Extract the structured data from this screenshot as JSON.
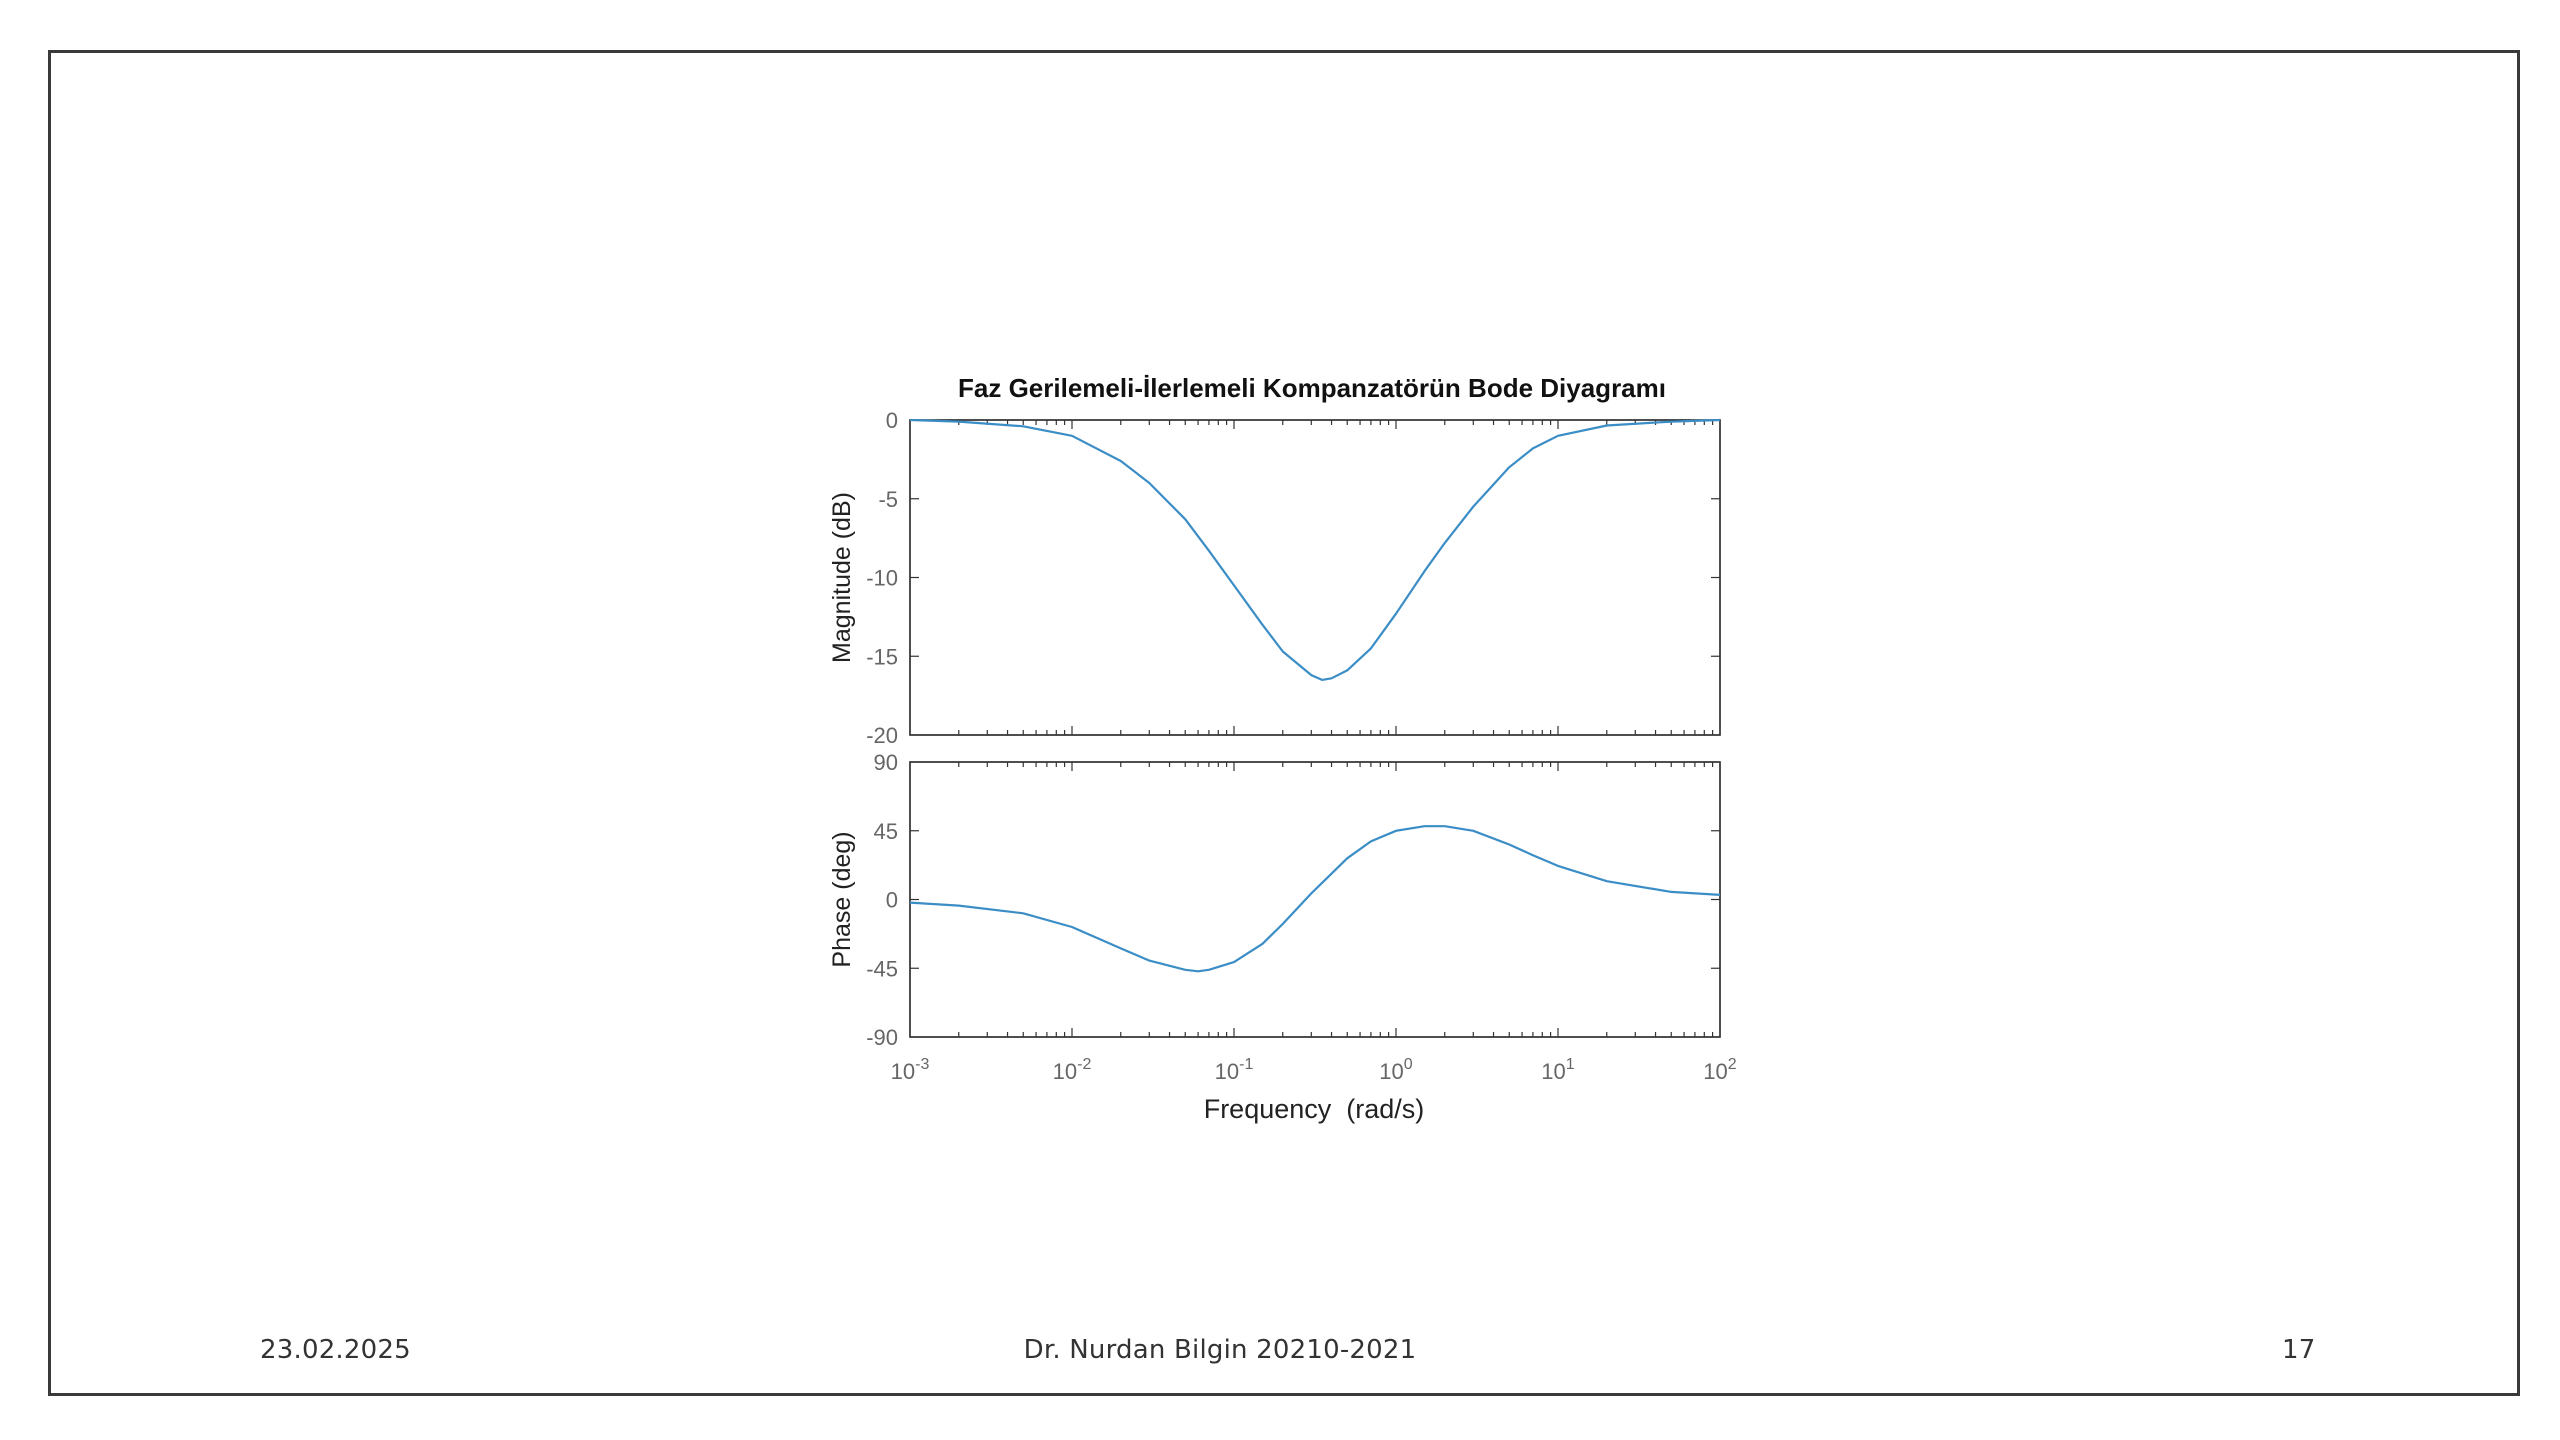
{
  "slide": {
    "date": "23.02.2025",
    "author": "Dr. Nurdan Bilgin 20210-2021",
    "page_number": "17"
  },
  "chart_data": {
    "type": "line",
    "title": "Faz Gerilemeli-İlerlemeli Kompanzatörün Bode Diyagramı",
    "x_scale": "log",
    "xlabel": "Frequency  (rad/s)",
    "xlim": [
      0.001,
      100
    ],
    "x_ticks": [
      {
        "base": "10",
        "exp": "-3"
      },
      {
        "base": "10",
        "exp": "-2"
      },
      {
        "base": "10",
        "exp": "-1"
      },
      {
        "base": "10",
        "exp": "0"
      },
      {
        "base": "10",
        "exp": "1"
      },
      {
        "base": "10",
        "exp": "2"
      }
    ],
    "line_color": "#3b8dc6",
    "grid": false,
    "panels": [
      {
        "name": "magnitude",
        "ylabel": "Magnitude (dB)",
        "ylim": [
          -20,
          0
        ],
        "y_ticks": [
          "0",
          "-5",
          "-10",
          "-15",
          "-20"
        ],
        "series": [
          {
            "x": [
              0.001,
              0.002,
              0.005,
              0.01,
              0.02,
              0.03,
              0.05,
              0.07,
              0.1,
              0.15,
              0.2,
              0.3,
              0.35,
              0.4,
              0.5,
              0.7,
              1,
              1.5,
              2,
              3,
              5,
              7,
              10,
              20,
              50,
              100
            ],
            "y": [
              0,
              -0.1,
              -0.4,
              -1.0,
              -2.6,
              -4.0,
              -6.3,
              -8.3,
              -10.5,
              -13.0,
              -14.7,
              -16.2,
              -16.5,
              -16.4,
              -15.9,
              -14.5,
              -12.3,
              -9.6,
              -7.8,
              -5.5,
              -3.0,
              -1.8,
              -1.0,
              -0.35,
              -0.1,
              0
            ]
          }
        ]
      },
      {
        "name": "phase",
        "ylabel": "Phase (deg)",
        "ylim": [
          -90,
          90
        ],
        "y_ticks": [
          "90",
          "45",
          "0",
          "-45",
          "-90"
        ],
        "series": [
          {
            "x": [
              0.001,
              0.002,
              0.005,
              0.01,
              0.02,
              0.03,
              0.05,
              0.06,
              0.07,
              0.1,
              0.15,
              0.2,
              0.3,
              0.5,
              0.7,
              1,
              1.5,
              2,
              3,
              5,
              7,
              10,
              20,
              50,
              100
            ],
            "y": [
              -2,
              -4,
              -9,
              -18,
              -32,
              -40,
              -46,
              -47,
              -46,
              -41,
              -29,
              -16,
              4,
              27,
              38,
              45,
              48,
              48,
              45,
              36,
              29,
              22,
              12,
              5,
              3
            ]
          }
        ]
      }
    ]
  }
}
